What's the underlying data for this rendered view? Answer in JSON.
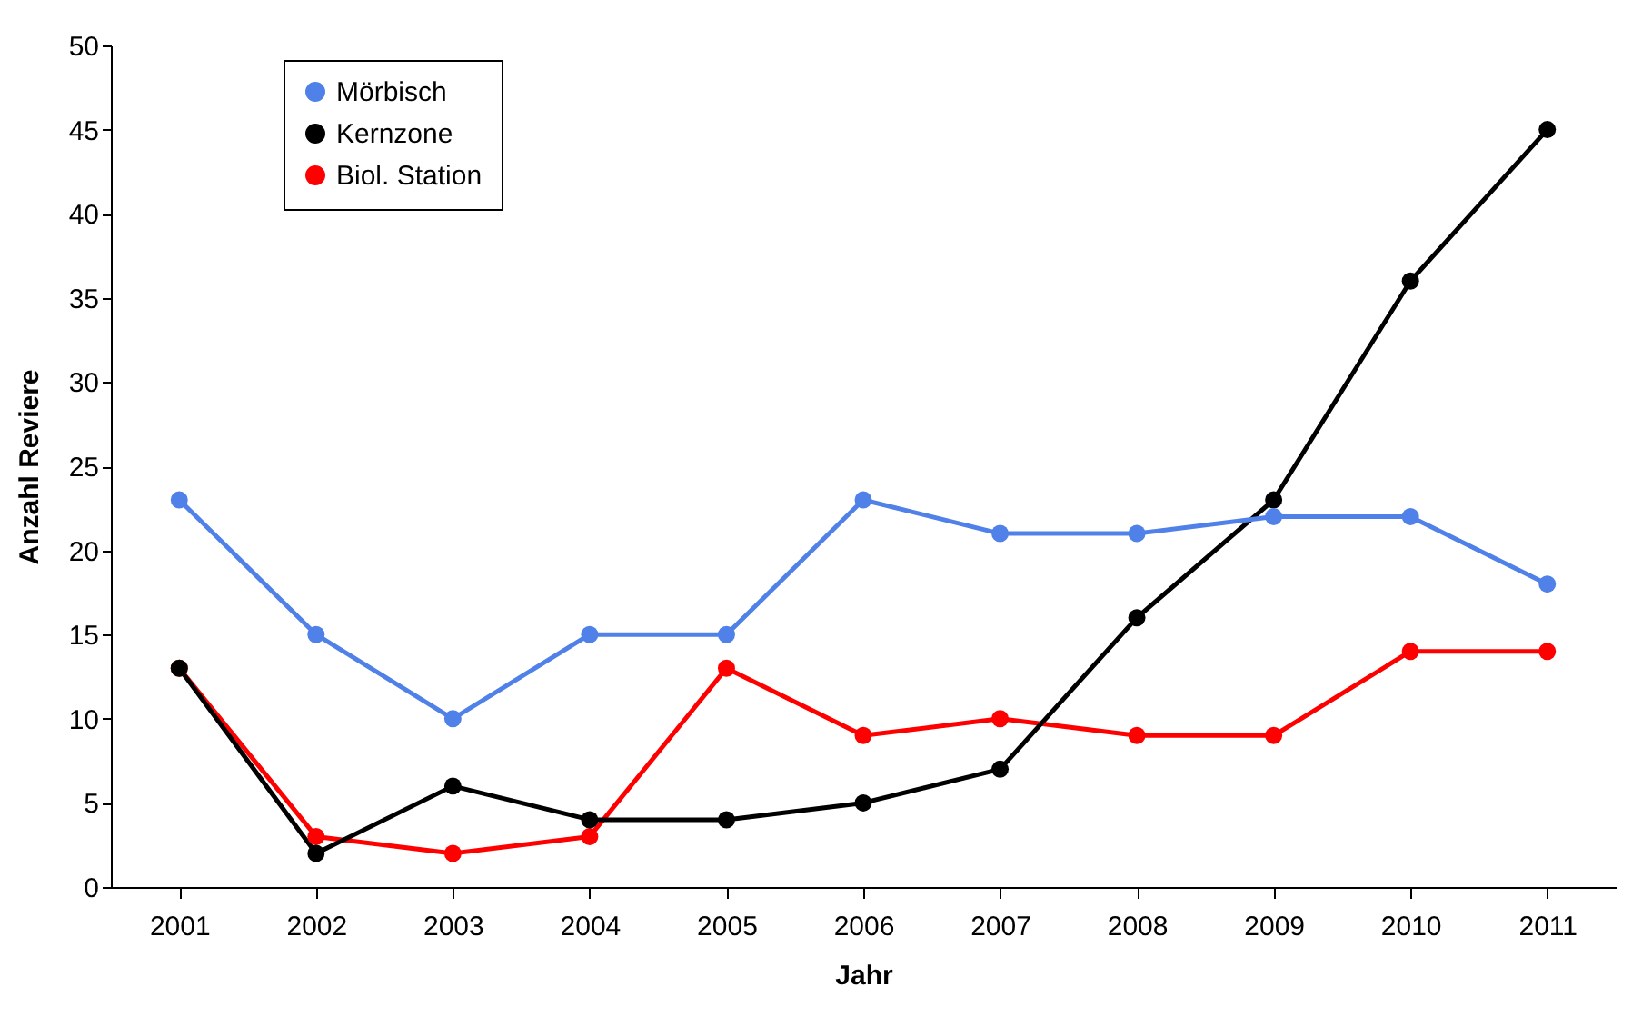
{
  "chart_data": {
    "type": "line",
    "xlabel": "Jahr",
    "ylabel": "Anzahl Reviere",
    "categories": [
      "2001",
      "2002",
      "2003",
      "2004",
      "2005",
      "2006",
      "2007",
      "2008",
      "2009",
      "2010",
      "2011"
    ],
    "series": [
      {
        "name": "Mörbisch",
        "color": "#4f81e8",
        "values": [
          23,
          15,
          10,
          15,
          15,
          23,
          21,
          21,
          22,
          22,
          18
        ]
      },
      {
        "name": "Kernzone",
        "color": "#000000",
        "values": [
          13,
          2,
          6,
          4,
          4,
          5,
          7,
          16,
          23,
          36,
          45
        ]
      },
      {
        "name": "Biol. Station",
        "color": "#ff0000",
        "values": [
          13,
          3,
          2,
          3,
          13,
          9,
          10,
          9,
          9,
          14,
          14
        ]
      }
    ],
    "ylim": [
      0,
      50
    ],
    "yticks": [
      0,
      5,
      10,
      15,
      20,
      25,
      30,
      35,
      40,
      45,
      50
    ],
    "grid": false,
    "legend": "top left",
    "marker": "circle",
    "line_style": "solid"
  }
}
